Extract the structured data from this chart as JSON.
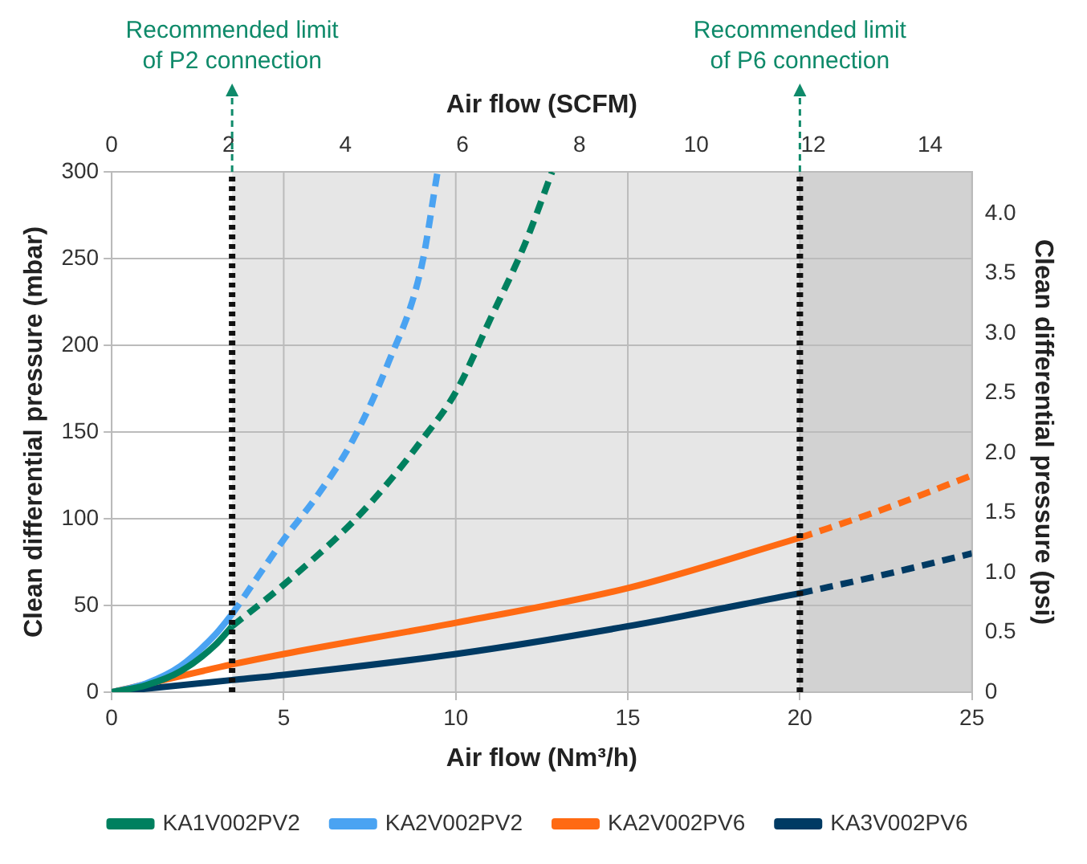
{
  "chart_data": {
    "type": "line",
    "xlabel": "Air flow (Nm³/h)",
    "x2label": "Air flow (SCFM)",
    "ylabel": "Clean differential pressure (mbar)",
    "y2label": "Clean differential pressure (psi)",
    "xlim": [
      0,
      25
    ],
    "xticks": [
      0,
      5,
      10,
      15,
      20,
      25
    ],
    "x2lim": [
      0,
      14.715
    ],
    "x2ticks": [
      0,
      2,
      4,
      6,
      8,
      10,
      12,
      14
    ],
    "ylim": [
      0,
      300
    ],
    "yticks": [
      0,
      50,
      100,
      150,
      200,
      250,
      300
    ],
    "y2lim": [
      0,
      4.351
    ],
    "y2ticks": [
      0,
      0.5,
      {
        "value": 1,
        "label": "1.0"
      },
      1.5,
      {
        "value": 2,
        "label": "2.0"
      },
      2.5,
      {
        "value": 3,
        "label": "3.0"
      },
      3.5,
      {
        "value": 4,
        "label": "4.0"
      }
    ],
    "grid": true,
    "legend": "bottom",
    "marker": "none",
    "series": [
      {
        "name": "KA1V002PV2",
        "color": "#00805f",
        "line_style": "solid",
        "x": [
          0,
          1,
          2,
          3,
          3.5
        ],
        "values": [
          0,
          4,
          12,
          27,
          38
        ]
      },
      {
        "name": "KA2V002PV2",
        "color": "#4aa3f2",
        "line_style": "solid",
        "x": [
          0,
          1,
          2,
          3,
          3.5
        ],
        "values": [
          0,
          5,
          15,
          33,
          45
        ]
      },
      {
        "name": "KA2V002PV6",
        "color": "#ff6a13",
        "line_style": "solid",
        "x": [
          0,
          3.5,
          5,
          10,
          15,
          20
        ],
        "values": [
          0,
          16,
          22,
          40,
          60,
          89
        ]
      },
      {
        "name": "KA3V002PV6",
        "color": "#003a63",
        "line_style": "solid",
        "x": [
          0,
          3.5,
          5,
          10,
          15,
          20
        ],
        "values": [
          0,
          7,
          10,
          22,
          38,
          57
        ]
      },
      {
        "color": "#00805f",
        "line_style": "dashed",
        "x": [
          3.5,
          5,
          7,
          8,
          9,
          10,
          11,
          12,
          12.8
        ],
        "values": [
          38,
          62,
          98,
          120,
          145,
          173,
          215,
          258,
          300
        ]
      },
      {
        "color": "#4aa3f2",
        "line_style": "dashed",
        "x": [
          3.5,
          5,
          6,
          7,
          8,
          9,
          9.47
        ],
        "values": [
          45,
          88,
          114,
          145,
          188,
          245,
          300
        ]
      },
      {
        "color": "#ff6a13",
        "line_style": "dashed",
        "x": [
          20,
          22.5,
          25
        ],
        "values": [
          89,
          106,
          125
        ]
      },
      {
        "color": "#003a63",
        "line_style": "dashed",
        "x": [
          20,
          22.5,
          25
        ],
        "values": [
          57,
          68,
          80
        ]
      }
    ],
    "ref_lines": [
      {
        "axis": "x",
        "value": 3.5,
        "label": "Recommended limit\nof P2 connection",
        "color": "#111111",
        "line_style": "dotted"
      },
      {
        "axis": "x",
        "value": 20,
        "label": "Recommended limit\nof P6 connection",
        "color": "#111111",
        "line_style": "dotted"
      }
    ],
    "bands": [
      {
        "axis": "x",
        "from": 3.5,
        "to": 20,
        "color": "#e6e6e6"
      },
      {
        "axis": "x",
        "from": 20,
        "to": 25,
        "color": "#d2d2d2"
      }
    ]
  }
}
